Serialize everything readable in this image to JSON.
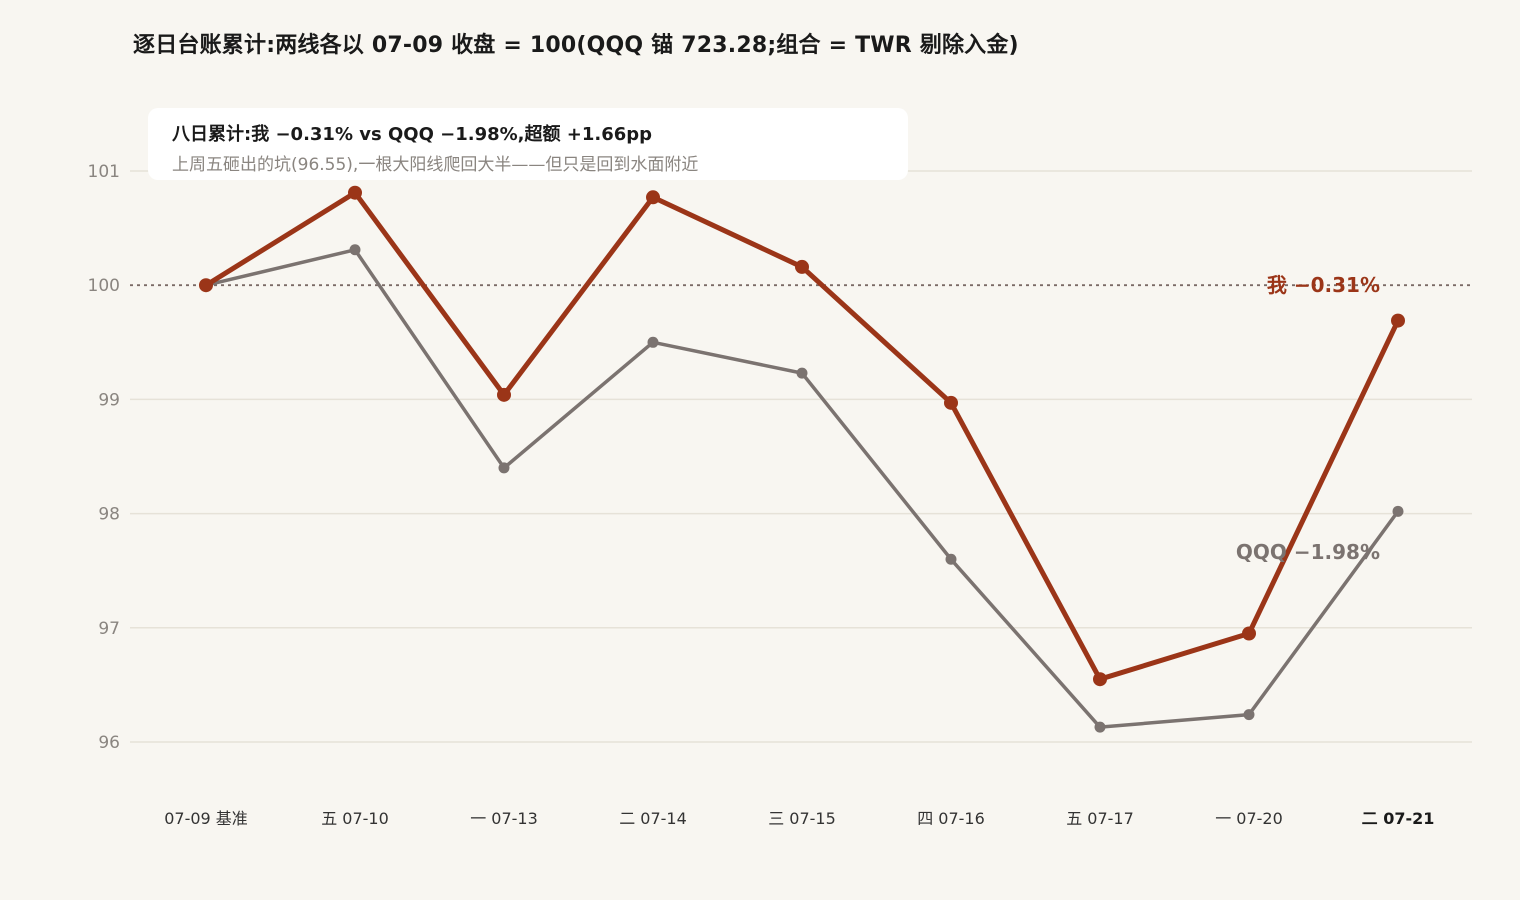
{
  "title": "逐日台账累计:两线各以 07-09 收盘 = 100(QQQ 锚 723.28;组合 = TWR 剔除入金)",
  "annotation": {
    "line1": "八日累计:我 −0.31% vs QQQ −1.98%,超额 +1.66pp",
    "line2": "上周五砸出的坑(96.55),一根大阳线爬回大半——但只是回到水面附近"
  },
  "colors": {
    "background": "#f8f6f1",
    "me": "#9b3518",
    "qqq": "#7b7370",
    "grid": "#e6e2d8",
    "baseline": "#7a6a66",
    "tick_text": "#8a8580"
  },
  "chart_data": {
    "type": "line",
    "categories": [
      "07-09 基准",
      "五 07-10",
      "一 07-13",
      "二 07-14",
      "三 07-15",
      "四 07-16",
      "五 07-17",
      "一 07-20",
      "二 07-21"
    ],
    "highlight_category": "二 07-21",
    "series": [
      {
        "name": "我",
        "end_label": "我 −0.31%",
        "values": [
          100,
          100.81,
          99.04,
          100.77,
          100.16,
          98.97,
          96.55,
          96.95,
          99.69
        ]
      },
      {
        "name": "QQQ",
        "end_label": "QQQ −1.98%",
        "values": [
          100,
          100.31,
          98.4,
          99.5,
          99.23,
          97.6,
          96.13,
          96.24,
          98.02
        ]
      }
    ],
    "ylim": [
      96,
      101
    ],
    "yticks": [
      96,
      97,
      98,
      99,
      100,
      101
    ],
    "reference_line": 100,
    "grid": true,
    "legend": "none"
  }
}
